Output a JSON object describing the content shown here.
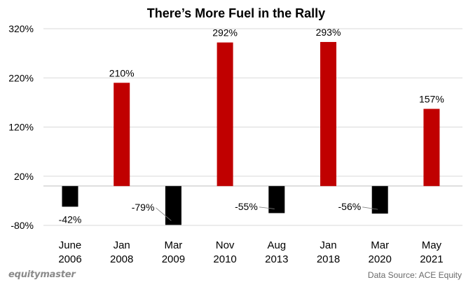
{
  "footer": {
    "brand": "equitymaster",
    "source": "Data Source: ACE Equity"
  },
  "colors": {
    "positive": "#c00000",
    "negative": "#000000",
    "grid": "#d9d9d9",
    "text": "#000000"
  },
  "chart_data": {
    "type": "bar",
    "title": "There’s More Fuel in the Rally",
    "xlabel": "",
    "ylabel": "",
    "ylim": [
      -80,
      320
    ],
    "yticks": [
      -80,
      20,
      120,
      220,
      320
    ],
    "ytick_labels": [
      "-80%",
      "20%",
      "120%",
      "220%",
      "320%"
    ],
    "baseline": 0,
    "grid": true,
    "legend": "none",
    "categories": [
      [
        "June",
        "2006"
      ],
      [
        "Jan",
        "2008"
      ],
      [
        "Mar",
        "2009"
      ],
      [
        "Nov",
        "2010"
      ],
      [
        "Aug",
        "2013"
      ],
      [
        "Jan",
        "2018"
      ],
      [
        "Mar",
        "2020"
      ],
      [
        "May",
        "2021"
      ]
    ],
    "values": [
      -42,
      210,
      -79,
      292,
      -55,
      293,
      -56,
      157
    ],
    "data_labels": [
      "-42%",
      "210%",
      "-79%",
      "292%",
      "-55%",
      "293%",
      "-56%",
      "157%"
    ]
  }
}
